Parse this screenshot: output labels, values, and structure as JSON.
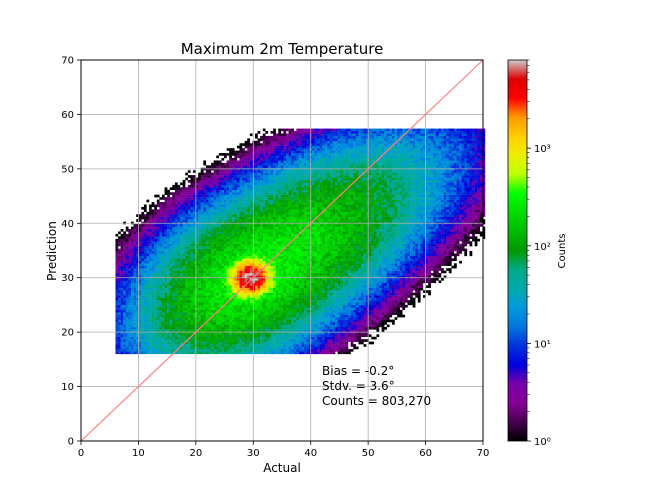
{
  "chart_data": {
    "type": "heatmap",
    "title": "Maximum 2m Temperature",
    "xlabel": "Actual",
    "ylabel": "Prediction",
    "xlim": [
      0,
      70
    ],
    "ylim": [
      0,
      70
    ],
    "xticks": [
      0,
      10,
      20,
      30,
      40,
      50,
      60,
      70
    ],
    "yticks": [
      0,
      10,
      20,
      30,
      40,
      50,
      60,
      70
    ],
    "grid": true,
    "reference_line": {
      "x": [
        0,
        70
      ],
      "y": [
        0,
        70
      ],
      "color": "#ff7f7f"
    },
    "density": {
      "x_range": [
        6,
        70
      ],
      "y_range": [
        16,
        57
      ],
      "core_axis_slope": 0.7,
      "peak": {
        "x": 29.5,
        "y": 30,
        "count": 8000
      }
    },
    "colorbar": {
      "label": "Counts",
      "scale": "log",
      "range": [
        1,
        8000
      ],
      "ticks": [
        {
          "value": 1,
          "label": "10⁰"
        },
        {
          "value": 10,
          "label": "10¹"
        },
        {
          "value": 100,
          "label": "10²"
        },
        {
          "value": 1000,
          "label": "10³"
        }
      ],
      "colormap": "nipy_spectral"
    },
    "annotations": [
      "Bias = -0.2°",
      "Stdv. = 3.6°",
      "Counts = 803,270"
    ]
  }
}
